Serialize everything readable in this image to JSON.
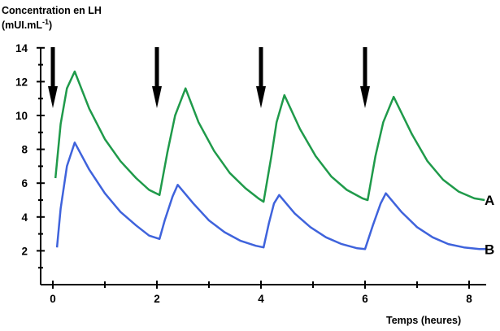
{
  "chart_data": {
    "type": "line",
    "ylabel_line1": "Concentration en LH",
    "ylabel_line2_base": "(mUI.mL",
    "ylabel_line2_exp": "-1",
    "ylabel_line2_end": ")",
    "xlabel": "Temps (heures)",
    "xlim": [
      -0.2,
      8.4
    ],
    "ylim": [
      0,
      14
    ],
    "x_ticks": [
      "0",
      "2",
      "4",
      "6",
      "8"
    ],
    "y_ticks": [
      "2",
      "4",
      "6",
      "8",
      "10",
      "12",
      "14"
    ],
    "arrows_x": [
      0,
      2,
      4,
      6
    ],
    "series": [
      {
        "name": "A",
        "color": "#1f9a4a",
        "points": [
          [
            0.05,
            6.3
          ],
          [
            0.15,
            9.5
          ],
          [
            0.27,
            11.6
          ],
          [
            0.42,
            12.6
          ],
          [
            0.7,
            10.4
          ],
          [
            1.0,
            8.6
          ],
          [
            1.3,
            7.3
          ],
          [
            1.6,
            6.3
          ],
          [
            1.85,
            5.6
          ],
          [
            2.05,
            5.3
          ],
          [
            2.2,
            7.8
          ],
          [
            2.35,
            10.0
          ],
          [
            2.55,
            11.6
          ],
          [
            2.8,
            9.6
          ],
          [
            3.1,
            7.9
          ],
          [
            3.4,
            6.6
          ],
          [
            3.7,
            5.7
          ],
          [
            3.95,
            5.1
          ],
          [
            4.05,
            4.9
          ],
          [
            4.2,
            7.6
          ],
          [
            4.3,
            9.6
          ],
          [
            4.45,
            11.2
          ],
          [
            4.75,
            9.2
          ],
          [
            5.05,
            7.6
          ],
          [
            5.35,
            6.4
          ],
          [
            5.65,
            5.6
          ],
          [
            5.95,
            5.1
          ],
          [
            6.05,
            5.0
          ],
          [
            6.2,
            7.6
          ],
          [
            6.35,
            9.6
          ],
          [
            6.55,
            11.1
          ],
          [
            6.9,
            8.9
          ],
          [
            7.2,
            7.3
          ],
          [
            7.5,
            6.2
          ],
          [
            7.8,
            5.5
          ],
          [
            8.1,
            5.1
          ],
          [
            8.3,
            5.0
          ]
        ]
      },
      {
        "name": "B",
        "color": "#3f63dc",
        "points": [
          [
            0.08,
            2.2
          ],
          [
            0.15,
            4.5
          ],
          [
            0.27,
            7.0
          ],
          [
            0.42,
            8.4
          ],
          [
            0.7,
            6.8
          ],
          [
            1.0,
            5.4
          ],
          [
            1.3,
            4.3
          ],
          [
            1.6,
            3.5
          ],
          [
            1.85,
            2.9
          ],
          [
            2.05,
            2.7
          ],
          [
            2.15,
            3.8
          ],
          [
            2.3,
            5.2
          ],
          [
            2.4,
            5.9
          ],
          [
            2.7,
            4.8
          ],
          [
            3.0,
            3.8
          ],
          [
            3.3,
            3.1
          ],
          [
            3.6,
            2.6
          ],
          [
            3.9,
            2.3
          ],
          [
            4.05,
            2.2
          ],
          [
            4.15,
            3.6
          ],
          [
            4.25,
            4.8
          ],
          [
            4.35,
            5.3
          ],
          [
            4.65,
            4.2
          ],
          [
            4.95,
            3.4
          ],
          [
            5.25,
            2.8
          ],
          [
            5.55,
            2.4
          ],
          [
            5.85,
            2.15
          ],
          [
            6.0,
            2.1
          ],
          [
            6.15,
            3.5
          ],
          [
            6.3,
            4.8
          ],
          [
            6.4,
            5.4
          ],
          [
            6.7,
            4.3
          ],
          [
            7.0,
            3.4
          ],
          [
            7.3,
            2.8
          ],
          [
            7.6,
            2.4
          ],
          [
            7.9,
            2.2
          ],
          [
            8.2,
            2.1
          ],
          [
            8.35,
            2.1
          ]
        ]
      }
    ]
  }
}
